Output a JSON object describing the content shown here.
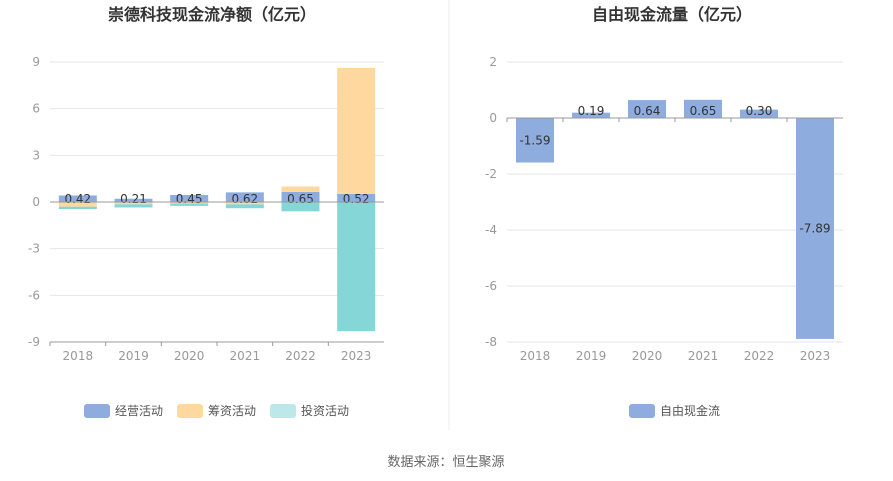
{
  "source_text": "数据来源：恒生聚源",
  "colors": {
    "op": "#8eadde",
    "fin": "#ffd8a0",
    "inv": "#85d6d6",
    "inv_legend": "#bde8ea",
    "fcf": "#8eadde",
    "grid": "#e6e6e6",
    "axis": "#999999"
  },
  "chart_data": [
    {
      "type": "bar",
      "title": "崇德科技现金流净额（亿元）",
      "categories": [
        "2018",
        "2019",
        "2020",
        "2021",
        "2022",
        "2023"
      ],
      "yticks": [
        "9",
        "6",
        "3",
        "0",
        "-3",
        "-6",
        "-9"
      ],
      "ylim": [
        -9,
        9
      ],
      "series": [
        {
          "name": "经营活动",
          "values": [
            0.42,
            0.21,
            0.45,
            0.62,
            0.65,
            0.52
          ],
          "labels": [
            "0.42",
            "0.21",
            "0.45",
            "0.62",
            "0.65",
            "0.52"
          ]
        },
        {
          "name": "筹资活动",
          "values": [
            -0.3,
            -0.15,
            -0.1,
            -0.15,
            0.35,
            8.1
          ]
        },
        {
          "name": "投资活动",
          "values": [
            -0.15,
            -0.2,
            -0.15,
            -0.25,
            -0.6,
            -8.3
          ]
        }
      ],
      "legend_placement": "bottom-center",
      "grid": true
    },
    {
      "type": "bar",
      "title": "自由现金流量（亿元）",
      "categories": [
        "2018",
        "2019",
        "2020",
        "2021",
        "2022",
        "2023"
      ],
      "yticks": [
        "2",
        "0",
        "-2",
        "-4",
        "-6",
        "-8"
      ],
      "ylim": [
        -8,
        2
      ],
      "series": [
        {
          "name": "自由现金流",
          "values": [
            -1.59,
            0.19,
            0.64,
            0.65,
            0.3,
            -7.89
          ],
          "labels": [
            "-1.59",
            "0.19",
            "0.64",
            "0.65",
            "0.30",
            "-7.89"
          ]
        }
      ],
      "legend_placement": "bottom-center",
      "grid": true
    }
  ]
}
